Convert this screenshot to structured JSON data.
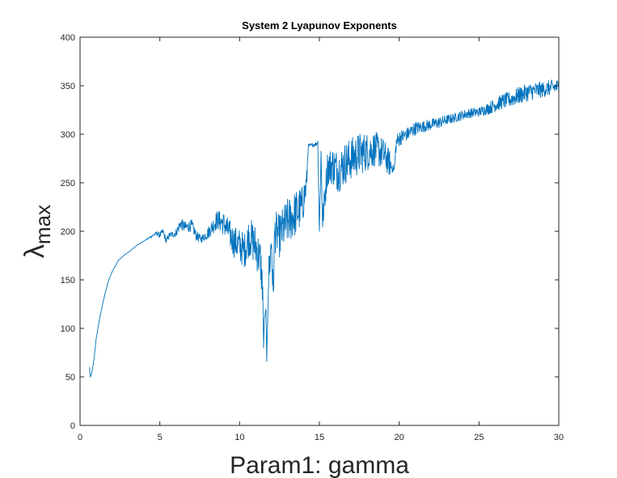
{
  "chart_data": {
    "type": "line",
    "title": "System 2 Lyapunov Exponents",
    "xlabel": "Param1: gamma",
    "ylabel": {
      "symbol": "λ",
      "subscript": "max"
    },
    "xlim": [
      0,
      30
    ],
    "ylim": [
      0,
      400
    ],
    "xticks": [
      0,
      5,
      10,
      15,
      20,
      25,
      30
    ],
    "yticks": [
      0,
      50,
      100,
      150,
      200,
      250,
      300,
      350,
      400
    ],
    "grid": false,
    "series_color": "#0072BD",
    "series": [
      {
        "x": [
          0.6,
          0.62,
          0.65,
          0.7,
          0.8,
          0.9,
          1.0,
          1.2,
          1.4,
          1.6,
          1.8,
          2.0,
          2.2,
          2.4,
          2.6,
          2.8,
          3.0,
          3.3,
          3.6,
          4.0,
          4.4,
          4.8,
          5.0,
          5.2,
          5.4,
          5.6,
          6.0,
          6.3,
          6.6,
          7.0,
          7.3,
          7.6,
          8.0,
          8.3,
          8.6,
          9.0,
          9.3,
          9.6,
          10.0,
          10.3,
          10.6,
          11.0,
          11.3,
          11.45,
          11.5,
          11.55,
          11.65,
          11.7,
          11.8,
          12.0,
          12.1,
          12.2,
          12.5,
          12.8,
          13.0,
          13.3,
          13.6,
          13.9,
          14.1,
          14.2,
          14.3,
          14.6,
          14.8,
          14.9,
          15.0,
          15.1,
          15.2,
          15.5,
          15.8,
          16.2,
          16.6,
          17.0,
          17.5,
          18.0,
          18.5,
          19.0,
          19.4,
          19.6,
          19.7,
          19.8,
          20.0,
          20.5,
          21.0,
          21.5,
          22.0,
          22.5,
          23.0,
          23.5,
          24.0,
          24.5,
          25.0,
          25.5,
          26.0,
          26.5,
          27.0,
          27.5,
          28.0,
          28.5,
          29.0,
          29.5,
          30.0
        ],
        "y": [
          60,
          52,
          50,
          52,
          60,
          72,
          88,
          108,
          124,
          138,
          150,
          158,
          164,
          170,
          173,
          176,
          178,
          182,
          186,
          190,
          194,
          198,
          196,
          200,
          190,
          196,
          198,
          208,
          204,
          206,
          195,
          192,
          198,
          205,
          212,
          208,
          200,
          190,
          185,
          180,
          195,
          185,
          170,
          140,
          80,
          110,
          120,
          66,
          150,
          190,
          131,
          200,
          195,
          205,
          210,
          215,
          220,
          225,
          240,
          250,
          288,
          289,
          290,
          292,
          200,
          280,
          210,
          265,
          268,
          262,
          270,
          275,
          280,
          282,
          285,
          280,
          270,
          265,
          264,
          290,
          296,
          300,
          306,
          308,
          310,
          312,
          315,
          317,
          320,
          322,
          323,
          326,
          330,
          334,
          336,
          340,
          343,
          345,
          346,
          348,
          349
        ],
        "noise": [
          0,
          0,
          0,
          0,
          0,
          0,
          0,
          0,
          0,
          0,
          0,
          0,
          0,
          0,
          0,
          0,
          0,
          0,
          0,
          0,
          1,
          2,
          3,
          3,
          3,
          3,
          4,
          6,
          6,
          6,
          5,
          4,
          6,
          8,
          10,
          12,
          14,
          16,
          18,
          18,
          20,
          22,
          22,
          20,
          0,
          0,
          0,
          0,
          20,
          22,
          20,
          22,
          22,
          24,
          24,
          24,
          24,
          22,
          18,
          14,
          2,
          2,
          2,
          2,
          10,
          14,
          14,
          18,
          20,
          22,
          22,
          22,
          22,
          20,
          18,
          16,
          14,
          4,
          3,
          10,
          8,
          7,
          7,
          6,
          6,
          6,
          5,
          5,
          5,
          5,
          5,
          6,
          7,
          8,
          8,
          9,
          9,
          9,
          8,
          8,
          8
        ]
      }
    ]
  }
}
